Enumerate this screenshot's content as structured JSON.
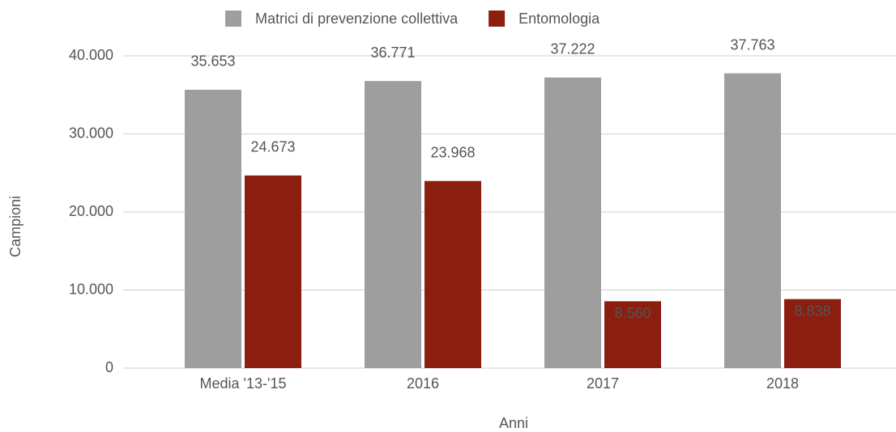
{
  "chart_data": {
    "type": "bar",
    "xlabel": "Anni",
    "ylabel": "Campioni",
    "categories": [
      "Media '13-'15",
      "2016",
      "2017",
      "2018"
    ],
    "series": [
      {
        "name": "Matrici di prevenzione collettiva",
        "color": "#9e9e9e",
        "values": [
          35653,
          36771,
          37222,
          37763
        ],
        "value_labels": [
          "35.653",
          "36.771",
          "37.222",
          "37.763"
        ]
      },
      {
        "name": "Entomologia",
        "color": "#8b1e0f",
        "values": [
          24673,
          23968,
          8560,
          8838
        ],
        "value_labels": [
          "24.673",
          "23.968",
          "8.560",
          "8.838"
        ]
      }
    ],
    "ylim": [
      0,
      40000
    ],
    "yticks": [
      0,
      {
        "value": 10000,
        "label": "10.000"
      },
      {
        "value": 20000,
        "label": "20.000"
      },
      {
        "value": 30000,
        "label": "30.000"
      },
      {
        "value": 40000,
        "label": "40.000"
      }
    ],
    "grid": true,
    "legend": "top"
  }
}
